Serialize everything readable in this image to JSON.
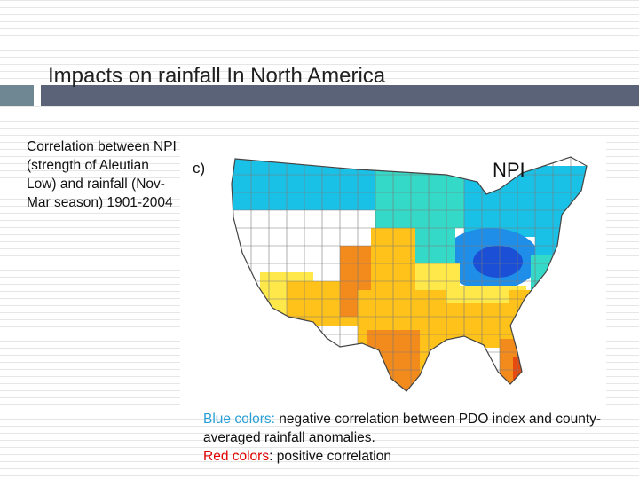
{
  "slide": {
    "title": "Impacts on rainfall In North America",
    "left_text": "Correlation between NPI (strength of Aleutian Low) and rainfall (Nov-Mar season) 1901-2004"
  },
  "map": {
    "panel_label": "c)",
    "index_label": "NPI",
    "colors": {
      "strong_negative": "#1a4fd6",
      "negative": "#1f8ee8",
      "weak_negative": "#19c1e6",
      "slight_negative": "#35d9c8",
      "neutral": "#ffffff",
      "slight_positive": "#ffe94a",
      "positive": "#ffc21a",
      "strong_positive": "#f28a1c",
      "very_strong_positive": "#e64a0f"
    }
  },
  "caption": {
    "blue_label": "Blue colors:",
    "blue_text": " negative correlation between PDO index and county-averaged rainfall anomalies.",
    "red_label": "Red colors",
    "red_text": ": positive correlation"
  }
}
